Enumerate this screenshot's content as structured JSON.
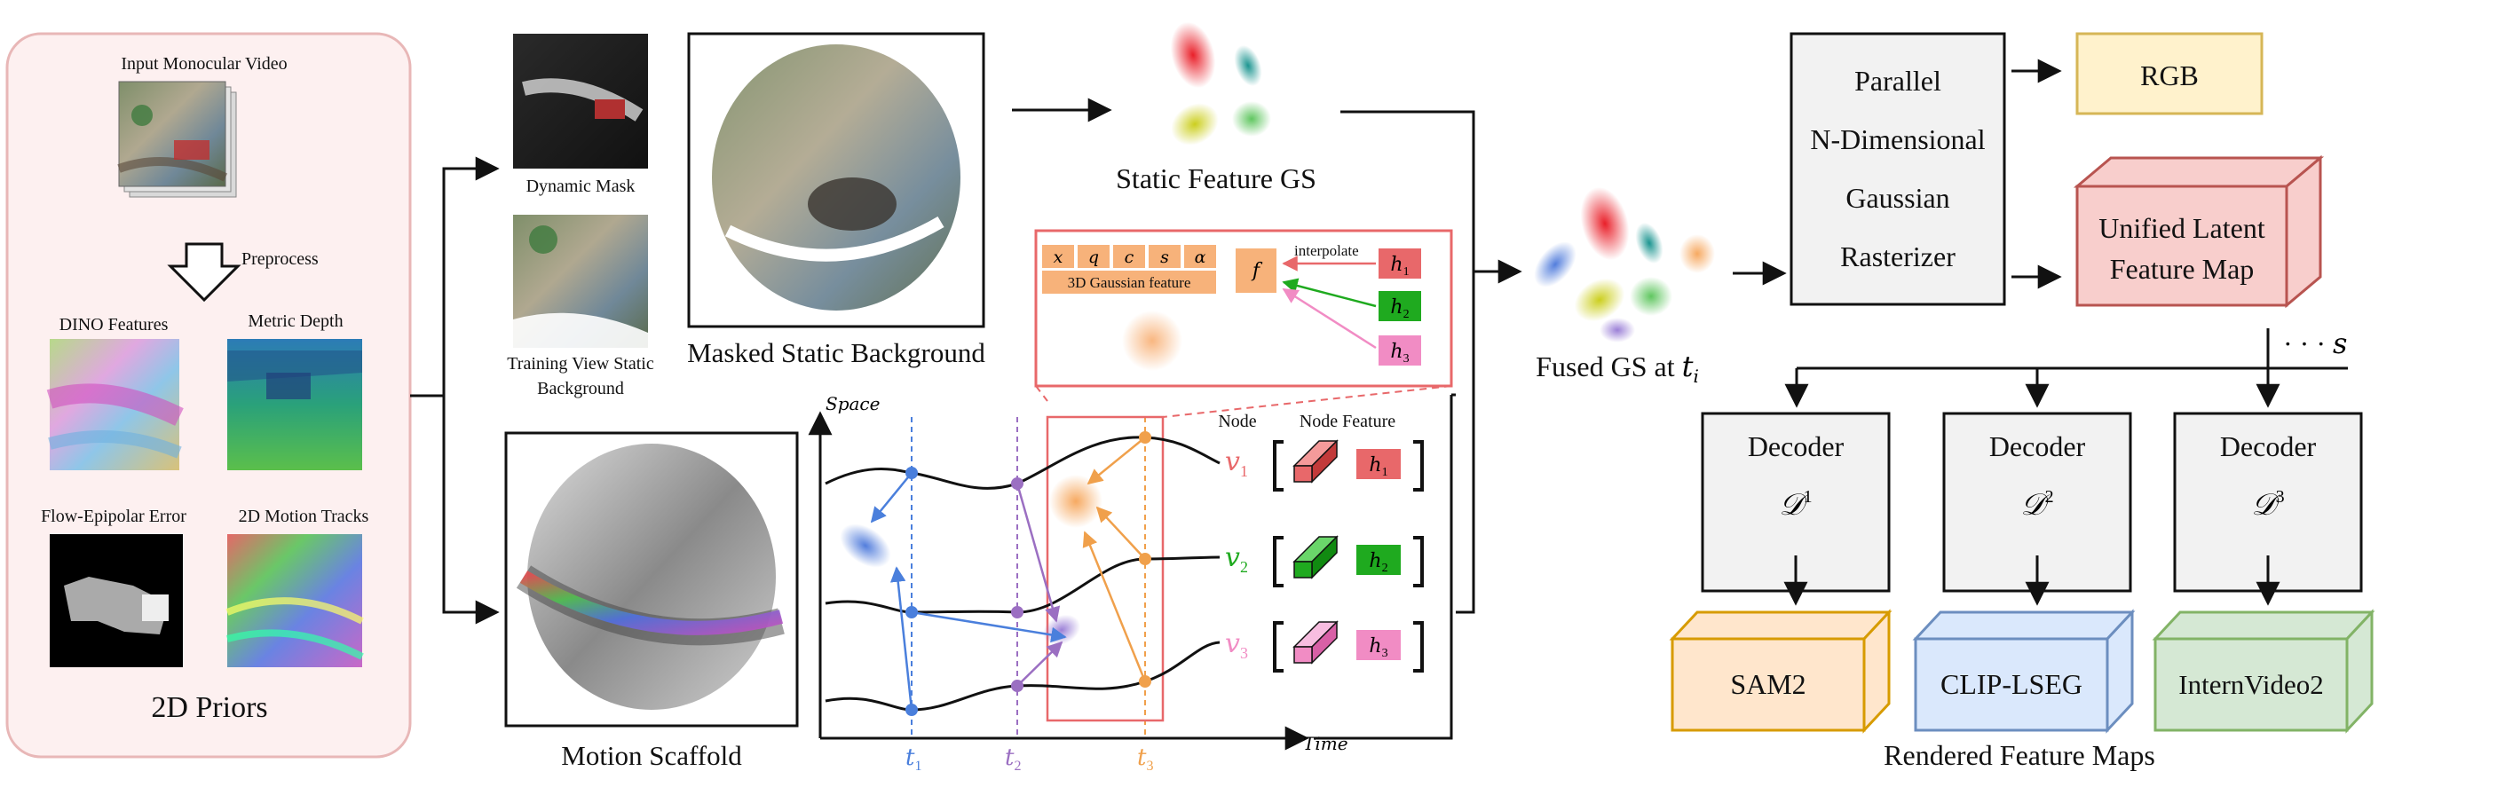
{
  "priors": {
    "input_label": "Input Monocular Video",
    "preprocess_label": "Preprocess",
    "dino_label": "DINO Features",
    "depth_label": "Metric Depth",
    "flow_label": "Flow-Epipolar Error",
    "tracks_label": "2D Motion Tracks",
    "title": "2D Priors"
  },
  "masks": {
    "dynamic_label": "Dynamic Mask",
    "static_line1": "Training View Static",
    "static_line2": "Background",
    "masked_bg_label": "Masked Static Background",
    "scaffold_label": "Motion Scaffold"
  },
  "static_gs": {
    "label": "Static Feature GS",
    "attrs": [
      "x",
      "q",
      "c",
      "s",
      "α"
    ],
    "gaussian_feature_label": "3D Gaussian feature",
    "f_label": "f",
    "interpolate_label": "interpolate",
    "h_labels": [
      "h",
      "h",
      "h"
    ],
    "h_subs": [
      "1",
      "2",
      "3"
    ]
  },
  "plot": {
    "space_label": "Space",
    "time_label": "Time",
    "node_header": "Node",
    "node_feature_header": "Node Feature",
    "nodes": [
      "v",
      "v",
      "v"
    ],
    "node_subs": [
      "1",
      "2",
      "3"
    ],
    "times": [
      "t",
      "t",
      "t"
    ],
    "time_subs": [
      "1",
      "2",
      "3"
    ]
  },
  "fused": {
    "label": "Fused GS at ",
    "t": "t",
    "sub": "i"
  },
  "rasterizer": {
    "lines": [
      "Parallel",
      "N-Dimensional",
      "Gaussian",
      "Rasterizer"
    ]
  },
  "rgb_label": "RGB",
  "latent_lines": [
    "Unified Latent",
    "Feature Map"
  ],
  "dots_label": "· · · ",
  "s_label": "s",
  "decoders": [
    {
      "title": "Decoder",
      "symbol": "𝒟",
      "sup": "1"
    },
    {
      "title": "Decoder",
      "symbol": "𝒟",
      "sup": "2"
    },
    {
      "title": "Decoder",
      "symbol": "𝒟",
      "sup": "3"
    }
  ],
  "outputs": [
    "SAM2",
    "CLIP-LSEG",
    "InternVideo2"
  ],
  "rendered_label": "Rendered Feature Maps",
  "colors": {
    "priors_bg": "#fdf0f0",
    "priors_border": "#e8b7b7",
    "rgb_fill": "#fff2cc",
    "rgb_stroke": "#d6b656",
    "latent_fill": "#f8cecc",
    "latent_stroke": "#b85450",
    "sam_fill": "#ffe6cc",
    "sam_stroke": "#d79b00",
    "clip_fill": "#dae8fc",
    "clip_stroke": "#6c8ebf",
    "intern_fill": "#d5e8d4",
    "intern_stroke": "#82b366",
    "t1_blue": "#4a7fdc",
    "t2_purple": "#9b6fc2",
    "t3_orange": "#f0a04b",
    "h1_red": "#e8686a",
    "h2_green": "#1faa1f",
    "h3_pink": "#f18cc4"
  }
}
